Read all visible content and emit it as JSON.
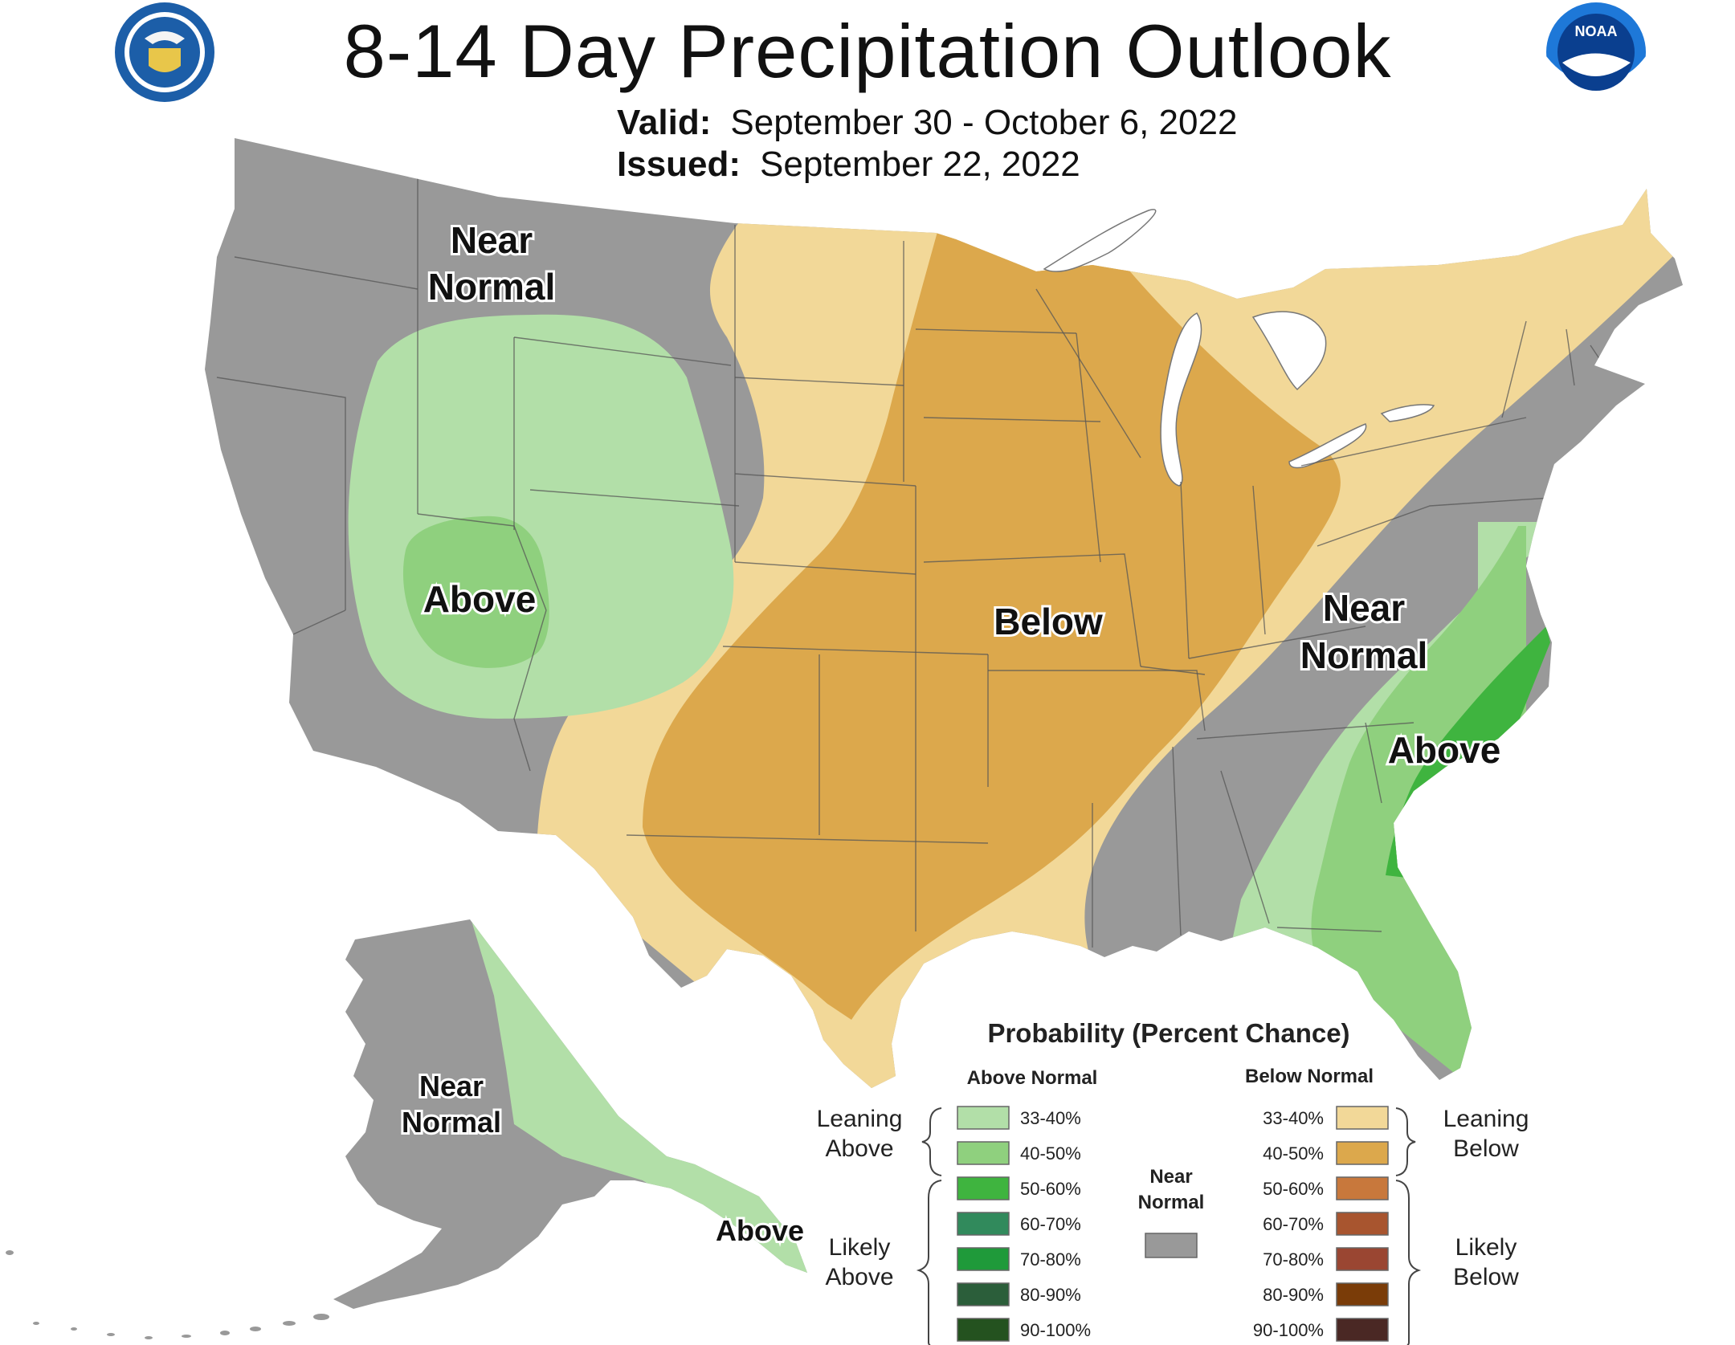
{
  "title": "8-14 Day Precipitation Outlook",
  "valid": {
    "label": "Valid:",
    "value": "September 30 - October 6, 2022"
  },
  "issued": {
    "label": "Issued:",
    "value": "September 22, 2022"
  },
  "logos": {
    "left": "department-of-commerce-seal-icon",
    "right": "noaa-logo-icon"
  },
  "map_labels": {
    "near_normal_west_1": "Near",
    "near_normal_west_2": "Normal",
    "above_west": "Above",
    "below_central": "Below",
    "near_normal_east_1": "Near",
    "near_normal_east_2": "Normal",
    "above_east": "Above",
    "alaska_near_1": "Near",
    "alaska_near_2": "Normal",
    "alaska_above": "Above"
  },
  "legend": {
    "title": "Probability (Percent Chance)",
    "above_header": "Above Normal",
    "below_header": "Below Normal",
    "near_header_1": "Near",
    "near_header_2": "Normal",
    "leaning_above_1": "Leaning",
    "leaning_above_2": "Above",
    "likely_above_1": "Likely",
    "likely_above_2": "Above",
    "leaning_below_1": "Leaning",
    "leaning_below_2": "Below",
    "likely_below_1": "Likely",
    "likely_below_2": "Below",
    "above": [
      {
        "label": "33-40%",
        "color": "#b2dfa8"
      },
      {
        "label": "40-50%",
        "color": "#8fd07e"
      },
      {
        "label": "50-60%",
        "color": "#3fb43f"
      },
      {
        "label": "60-70%",
        "color": "#318a5c"
      },
      {
        "label": "70-80%",
        "color": "#1f9a3a"
      },
      {
        "label": "80-90%",
        "color": "#2b5e3a"
      },
      {
        "label": "90-100%",
        "color": "#24521f"
      }
    ],
    "below": [
      {
        "label": "33-40%",
        "color": "#f2d898"
      },
      {
        "label": "40-50%",
        "color": "#dca84c"
      },
      {
        "label": "50-60%",
        "color": "#c8783c"
      },
      {
        "label": "60-70%",
        "color": "#a8552f"
      },
      {
        "label": "70-80%",
        "color": "#9a4632"
      },
      {
        "label": "80-90%",
        "color": "#7a3c08"
      },
      {
        "label": "90-100%",
        "color": "#4a2824"
      }
    ],
    "near_color": "#999999"
  },
  "colors": {
    "near_normal": "#999999",
    "above_33_40": "#b2dfa8",
    "above_40_50": "#8fd07e",
    "above_50_60": "#3fb43f",
    "below_33_40": "#f2d898",
    "below_40_50": "#dca84c",
    "lakes": "#ffffff"
  }
}
